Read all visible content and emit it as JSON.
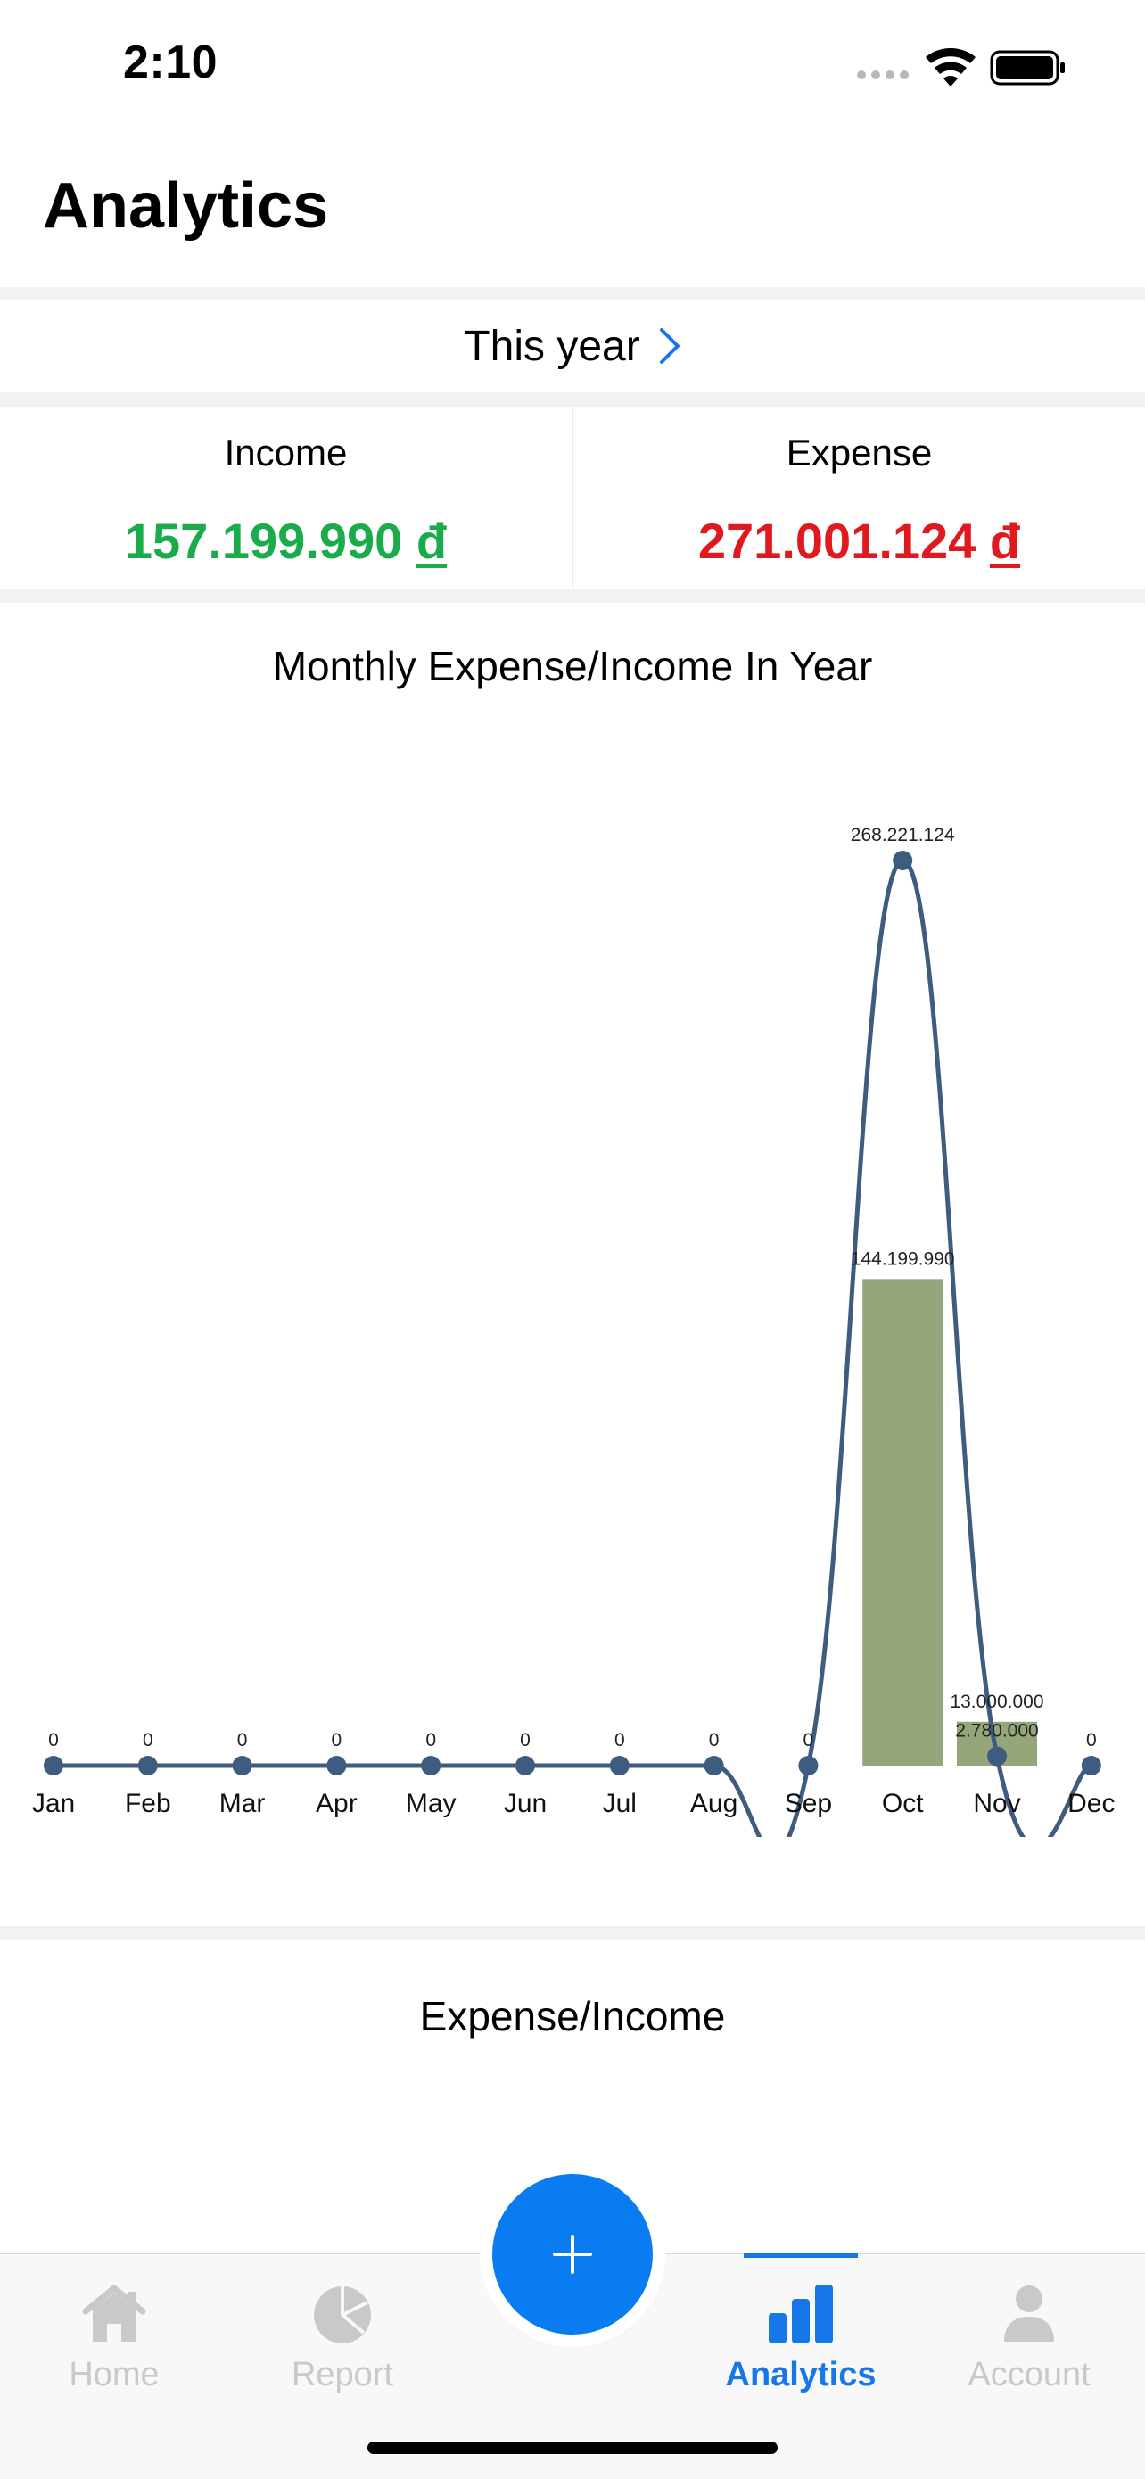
{
  "status_bar": {
    "time": "2:10"
  },
  "page_title": "Analytics",
  "period": {
    "label": "This year"
  },
  "summary": {
    "income": {
      "label": "Income",
      "amount": "157.199.990",
      "currency": "đ"
    },
    "expense": {
      "label": "Expense",
      "amount": "271.001.124",
      "currency": "đ"
    }
  },
  "monthly_chart_title": "Monthly Expense/Income In Year",
  "chart_data": {
    "type": "bar",
    "categories": [
      "Jan",
      "Feb",
      "Mar",
      "Apr",
      "May",
      "Jun",
      "Jul",
      "Aug",
      "Sep",
      "Oct",
      "Nov",
      "Dec"
    ],
    "series": [
      {
        "type": "bar",
        "values": [
          0,
          0,
          0,
          0,
          0,
          0,
          0,
          0,
          0,
          144199990,
          13000000,
          0
        ],
        "labels": [
          "",
          "",
          "",
          "",
          "",
          "",
          "",
          "",
          "",
          "144.199.990",
          "13.000.000",
          ""
        ],
        "color": "#95a67a"
      },
      {
        "type": "line",
        "values": [
          0,
          0,
          0,
          0,
          0,
          0,
          0,
          0,
          0,
          268221124,
          2780000,
          0
        ],
        "labels": [
          "0",
          "0",
          "0",
          "0",
          "0",
          "0",
          "0",
          "0",
          "0",
          "268.221.124",
          "2.780.000",
          "0"
        ],
        "color": "#3e5b80"
      }
    ],
    "ylim": [
      0,
      280000000
    ]
  },
  "expense_income_title": "Expense/Income",
  "tabs": [
    {
      "label": "Home",
      "icon": "home-icon",
      "active": false
    },
    {
      "label": "Report",
      "icon": "pie-chart-icon",
      "active": false
    },
    {
      "label": "Analytics",
      "icon": "bar-chart-icon",
      "active": true
    },
    {
      "label": "Account",
      "icon": "person-icon",
      "active": false
    }
  ],
  "colors": {
    "accent": "#0a7cf2",
    "income": "#1aab4a",
    "expense": "#e0191f"
  }
}
